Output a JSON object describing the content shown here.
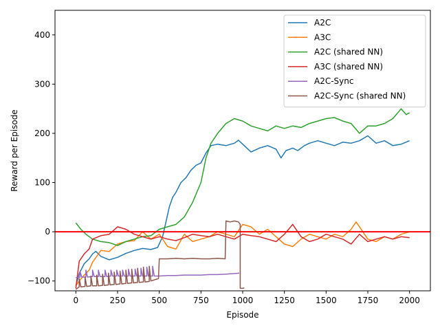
{
  "chart_data": {
    "type": "line",
    "xlabel": "Episode",
    "ylabel": "Reward per Episode",
    "xlim": [
      -125,
      2125
    ],
    "ylim": [
      -120,
      450
    ],
    "xticks": [
      0,
      250,
      500,
      750,
      1000,
      1250,
      1500,
      1750,
      2000
    ],
    "yticks": [
      -100,
      0,
      100,
      200,
      300,
      400
    ],
    "grid": false,
    "legend_position": "top-right",
    "reference_line": {
      "y": 0,
      "color": "#ff0000"
    },
    "series": [
      {
        "name": "A2C",
        "color": "#1f77b4",
        "points": [
          [
            0,
            -110
          ],
          [
            20,
            -85
          ],
          [
            50,
            -65
          ],
          [
            80,
            -55
          ],
          [
            100,
            -45
          ],
          [
            120,
            -40
          ],
          [
            150,
            -50
          ],
          [
            200,
            -57
          ],
          [
            250,
            -52
          ],
          [
            300,
            -44
          ],
          [
            350,
            -38
          ],
          [
            400,
            -34
          ],
          [
            450,
            -36
          ],
          [
            490,
            -32
          ],
          [
            520,
            -10
          ],
          [
            540,
            20
          ],
          [
            560,
            50
          ],
          [
            580,
            70
          ],
          [
            600,
            80
          ],
          [
            630,
            100
          ],
          [
            660,
            110
          ],
          [
            690,
            125
          ],
          [
            720,
            135
          ],
          [
            750,
            140
          ],
          [
            780,
            160
          ],
          [
            810,
            175
          ],
          [
            850,
            178
          ],
          [
            900,
            175
          ],
          [
            950,
            180
          ],
          [
            975,
            186
          ],
          [
            1000,
            178
          ],
          [
            1050,
            162
          ],
          [
            1100,
            170
          ],
          [
            1150,
            175
          ],
          [
            1200,
            168
          ],
          [
            1230,
            150
          ],
          [
            1260,
            165
          ],
          [
            1300,
            170
          ],
          [
            1330,
            165
          ],
          [
            1370,
            175
          ],
          [
            1400,
            180
          ],
          [
            1450,
            185
          ],
          [
            1500,
            180
          ],
          [
            1550,
            175
          ],
          [
            1600,
            182
          ],
          [
            1650,
            180
          ],
          [
            1700,
            185
          ],
          [
            1750,
            195
          ],
          [
            1800,
            180
          ],
          [
            1850,
            185
          ],
          [
            1900,
            175
          ],
          [
            1950,
            178
          ],
          [
            2000,
            185
          ]
        ]
      },
      {
        "name": "A3C",
        "color": "#ff7f0e",
        "points": [
          [
            0,
            -110
          ],
          [
            20,
            -100
          ],
          [
            50,
            -88
          ],
          [
            80,
            -78
          ],
          [
            100,
            -62
          ],
          [
            150,
            -38
          ],
          [
            200,
            -40
          ],
          [
            250,
            -25
          ],
          [
            300,
            -20
          ],
          [
            350,
            -18
          ],
          [
            400,
            0
          ],
          [
            450,
            -15
          ],
          [
            500,
            -5
          ],
          [
            550,
            -30
          ],
          [
            600,
            -35
          ],
          [
            650,
            -5
          ],
          [
            700,
            -20
          ],
          [
            750,
            -15
          ],
          [
            800,
            -10
          ],
          [
            850,
            0
          ],
          [
            900,
            -5
          ],
          [
            950,
            -10
          ],
          [
            1000,
            15
          ],
          [
            1050,
            10
          ],
          [
            1100,
            -5
          ],
          [
            1150,
            5
          ],
          [
            1200,
            -10
          ],
          [
            1250,
            -25
          ],
          [
            1300,
            -30
          ],
          [
            1350,
            -15
          ],
          [
            1400,
            -5
          ],
          [
            1450,
            -10
          ],
          [
            1500,
            -15
          ],
          [
            1550,
            -5
          ],
          [
            1600,
            -10
          ],
          [
            1650,
            5
          ],
          [
            1680,
            20
          ],
          [
            1700,
            10
          ],
          [
            1750,
            -15
          ],
          [
            1800,
            -20
          ],
          [
            1850,
            -10
          ],
          [
            1900,
            -15
          ],
          [
            1950,
            -5
          ],
          [
            2000,
            0
          ]
        ]
      },
      {
        "name": "A2C (shared NN)",
        "color": "#2ca02c",
        "points": [
          [
            0,
            18
          ],
          [
            30,
            5
          ],
          [
            60,
            -5
          ],
          [
            100,
            -15
          ],
          [
            150,
            -20
          ],
          [
            200,
            -22
          ],
          [
            250,
            -28
          ],
          [
            300,
            -20
          ],
          [
            350,
            -15
          ],
          [
            400,
            -10
          ],
          [
            450,
            -8
          ],
          [
            500,
            5
          ],
          [
            550,
            10
          ],
          [
            600,
            15
          ],
          [
            650,
            30
          ],
          [
            700,
            60
          ],
          [
            750,
            100
          ],
          [
            780,
            150
          ],
          [
            810,
            180
          ],
          [
            850,
            200
          ],
          [
            900,
            220
          ],
          [
            950,
            230
          ],
          [
            1000,
            225
          ],
          [
            1050,
            215
          ],
          [
            1100,
            210
          ],
          [
            1150,
            205
          ],
          [
            1200,
            215
          ],
          [
            1250,
            210
          ],
          [
            1300,
            215
          ],
          [
            1350,
            212
          ],
          [
            1400,
            220
          ],
          [
            1450,
            225
          ],
          [
            1500,
            230
          ],
          [
            1550,
            232
          ],
          [
            1600,
            225
          ],
          [
            1650,
            220
          ],
          [
            1700,
            200
          ],
          [
            1750,
            215
          ],
          [
            1800,
            215
          ],
          [
            1850,
            220
          ],
          [
            1900,
            230
          ],
          [
            1950,
            250
          ],
          [
            1980,
            238
          ],
          [
            2000,
            242
          ]
        ]
      },
      {
        "name": "A3C (shared NN)",
        "color": "#d62728",
        "points": [
          [
            0,
            -115
          ],
          [
            20,
            -60
          ],
          [
            50,
            -45
          ],
          [
            80,
            -35
          ],
          [
            100,
            -15
          ],
          [
            150,
            -8
          ],
          [
            200,
            -5
          ],
          [
            250,
            10
          ],
          [
            300,
            5
          ],
          [
            350,
            -5
          ],
          [
            400,
            -10
          ],
          [
            450,
            -15
          ],
          [
            500,
            -10
          ],
          [
            550,
            -15
          ],
          [
            600,
            -18
          ],
          [
            650,
            -12
          ],
          [
            700,
            -5
          ],
          [
            750,
            -8
          ],
          [
            800,
            -10
          ],
          [
            850,
            -5
          ],
          [
            900,
            -10
          ],
          [
            950,
            -15
          ],
          [
            1000,
            -5
          ],
          [
            1050,
            -8
          ],
          [
            1100,
            -10
          ],
          [
            1150,
            -15
          ],
          [
            1200,
            -20
          ],
          [
            1250,
            -5
          ],
          [
            1300,
            15
          ],
          [
            1350,
            -10
          ],
          [
            1400,
            -20
          ],
          [
            1450,
            -15
          ],
          [
            1500,
            -5
          ],
          [
            1550,
            -10
          ],
          [
            1600,
            -15
          ],
          [
            1650,
            -25
          ],
          [
            1700,
            -5
          ],
          [
            1750,
            -20
          ],
          [
            1800,
            -15
          ],
          [
            1850,
            -10
          ],
          [
            1900,
            -15
          ],
          [
            1950,
            -10
          ],
          [
            2000,
            -12
          ]
        ]
      },
      {
        "name": "A2C-Sync",
        "color": "#9467bd",
        "points": [
          [
            0,
            -93
          ],
          [
            25,
            -92
          ],
          [
            25,
            -80
          ],
          [
            35,
            -92
          ],
          [
            60,
            -92
          ],
          [
            60,
            -78
          ],
          [
            70,
            -92
          ],
          [
            100,
            -91
          ],
          [
            100,
            -78
          ],
          [
            110,
            -91
          ],
          [
            135,
            -91
          ],
          [
            135,
            -78
          ],
          [
            145,
            -91
          ],
          [
            175,
            -91
          ],
          [
            175,
            -78
          ],
          [
            185,
            -91
          ],
          [
            210,
            -90
          ],
          [
            210,
            -78
          ],
          [
            220,
            -90
          ],
          [
            245,
            -90
          ],
          [
            245,
            -78
          ],
          [
            255,
            -90
          ],
          [
            280,
            -90
          ],
          [
            280,
            -78
          ],
          [
            290,
            -90
          ],
          [
            315,
            -90
          ],
          [
            315,
            -76
          ],
          [
            325,
            -90
          ],
          [
            355,
            -90
          ],
          [
            355,
            -76
          ],
          [
            365,
            -90
          ],
          [
            390,
            -90
          ],
          [
            390,
            -74
          ],
          [
            400,
            -90
          ],
          [
            425,
            -90
          ],
          [
            425,
            -72
          ],
          [
            435,
            -90
          ],
          [
            460,
            -90
          ],
          [
            460,
            -70
          ],
          [
            470,
            -90
          ],
          [
            500,
            -90
          ],
          [
            550,
            -89
          ],
          [
            600,
            -89
          ],
          [
            650,
            -88
          ],
          [
            700,
            -88
          ],
          [
            750,
            -88
          ],
          [
            800,
            -87
          ],
          [
            850,
            -87
          ],
          [
            900,
            -86
          ],
          [
            950,
            -85
          ],
          [
            980,
            -84
          ]
        ]
      },
      {
        "name": "A2C-Sync (shared NN)",
        "color": "#8c564b",
        "points": [
          [
            0,
            -117
          ],
          [
            20,
            -112
          ],
          [
            20,
            -95
          ],
          [
            30,
            -112
          ],
          [
            55,
            -111
          ],
          [
            55,
            -92
          ],
          [
            65,
            -111
          ],
          [
            90,
            -110
          ],
          [
            90,
            -90
          ],
          [
            100,
            -110
          ],
          [
            125,
            -110
          ],
          [
            125,
            -88
          ],
          [
            135,
            -110
          ],
          [
            160,
            -109
          ],
          [
            160,
            -86
          ],
          [
            170,
            -109
          ],
          [
            195,
            -108
          ],
          [
            195,
            -84
          ],
          [
            205,
            -108
          ],
          [
            230,
            -107
          ],
          [
            230,
            -82
          ],
          [
            240,
            -107
          ],
          [
            265,
            -106
          ],
          [
            265,
            -80
          ],
          [
            275,
            -106
          ],
          [
            300,
            -105
          ],
          [
            300,
            -78
          ],
          [
            310,
            -105
          ],
          [
            335,
            -104
          ],
          [
            335,
            -76
          ],
          [
            345,
            -104
          ],
          [
            370,
            -103
          ],
          [
            370,
            -74
          ],
          [
            380,
            -103
          ],
          [
            405,
            -102
          ],
          [
            405,
            -72
          ],
          [
            415,
            -102
          ],
          [
            440,
            -101
          ],
          [
            440,
            -70
          ],
          [
            450,
            -100
          ],
          [
            495,
            -95
          ],
          [
            500,
            -55
          ],
          [
            550,
            -55
          ],
          [
            600,
            -54
          ],
          [
            650,
            -55
          ],
          [
            700,
            -54
          ],
          [
            750,
            -55
          ],
          [
            800,
            -55
          ],
          [
            850,
            -54
          ],
          [
            895,
            -55
          ],
          [
            900,
            22
          ],
          [
            925,
            20
          ],
          [
            950,
            22
          ],
          [
            975,
            20
          ],
          [
            985,
            15
          ],
          [
            985,
            -115
          ],
          [
            1000,
            -115
          ],
          [
            1010,
            -114
          ]
        ]
      }
    ]
  }
}
